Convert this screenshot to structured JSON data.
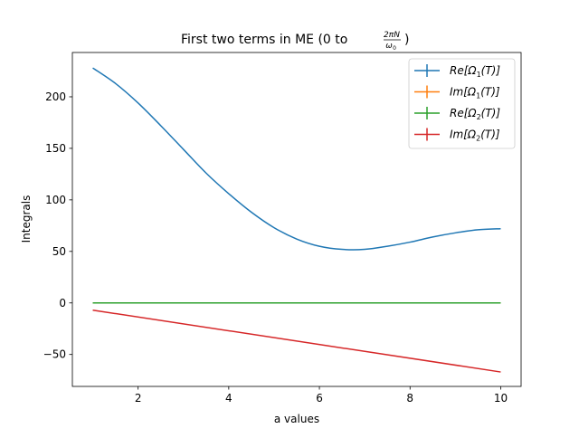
{
  "chart_data": {
    "type": "line",
    "title": {
      "prefix": "First two terms in ME (0 to ",
      "frac_numerator": "2πN",
      "frac_denominator": "ω",
      "frac_denominator_sub": "0",
      "suffix": ")"
    },
    "xlabel": "a values",
    "ylabel": "Integrals",
    "xlim": [
      0.55,
      10.45
    ],
    "ylim": [
      -81,
      243
    ],
    "xticks": [
      2,
      4,
      6,
      8,
      10
    ],
    "yticks": [
      -50,
      0,
      50,
      100,
      150,
      200
    ],
    "grid": false,
    "legend_position": "top-right",
    "series": [
      {
        "label": {
          "pre": "Re[Ω",
          "sub": "1",
          "post": "(T)]"
        },
        "color": "#1f77b4",
        "x": [
          1,
          1.5,
          2,
          2.5,
          3,
          3.5,
          4,
          4.5,
          5,
          5.5,
          6,
          6.5,
          7,
          7.5,
          8,
          8.5,
          9,
          9.5,
          10
        ],
        "y": [
          228,
          213,
          194,
          172,
          149,
          126,
          106,
          88,
          73,
          62,
          55,
          52,
          52,
          55,
          59,
          64,
          68,
          71,
          72
        ]
      },
      {
        "label": {
          "pre": "Im[Ω",
          "sub": "1",
          "post": "(T)]"
        },
        "color": "#ff7f0e",
        "x": [
          1,
          10
        ],
        "y": [
          0,
          0
        ]
      },
      {
        "label": {
          "pre": "Re[Ω",
          "sub": "2",
          "post": "(T)]"
        },
        "color": "#2ca02c",
        "x": [
          1,
          10
        ],
        "y": [
          0,
          0
        ]
      },
      {
        "label": {
          "pre": "Im[Ω",
          "sub": "2",
          "post": "(T)]"
        },
        "color": "#d62728",
        "x": [
          1,
          10
        ],
        "y": [
          -7,
          -67
        ]
      }
    ]
  }
}
